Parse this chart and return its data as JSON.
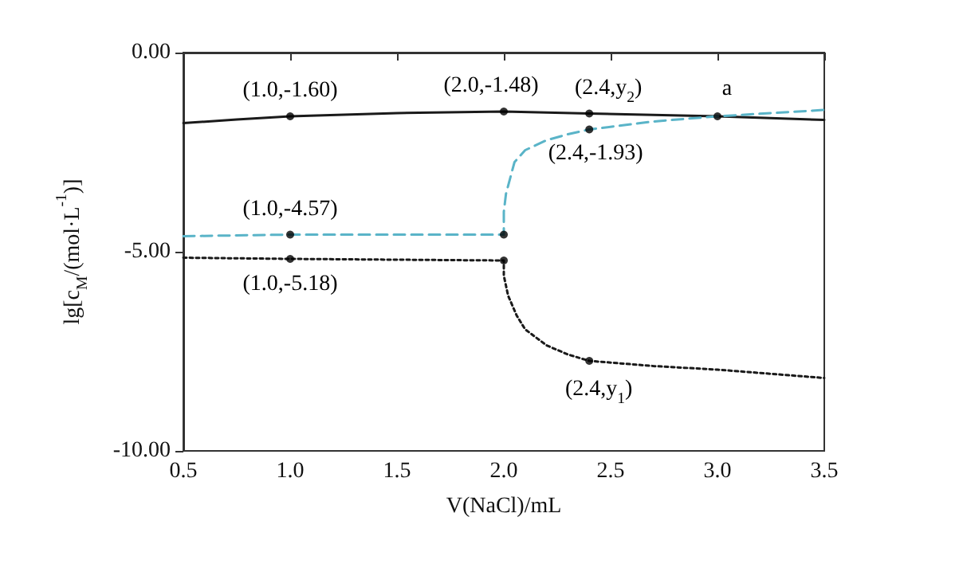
{
  "chart_data": {
    "type": "line",
    "xlabel": "V(NaCl)/mL",
    "ylabel": "lg[c$_{M}$/(mol·L$^{-1}$)]",
    "xlim": [
      0.5,
      3.5
    ],
    "ylim": [
      -10,
      0
    ],
    "xticks": [
      0.5,
      {
        "value": 1,
        "label": "1.0"
      },
      1.5,
      {
        "value": 2,
        "label": "2.0"
      },
      2.5,
      {
        "value": 3,
        "label": "3.0"
      },
      3.5
    ],
    "yticks": [
      {
        "value": -10,
        "label": "-10.00"
      },
      {
        "value": -5,
        "label": "-5.00"
      },
      {
        "value": 0,
        "label": "0.00"
      }
    ],
    "grid": false,
    "marker": "none",
    "series": [
      {
        "color": "#1a1a1a",
        "line_style": "solid",
        "x": [
          0.5,
          0.75,
          1.0,
          1.5,
          2.0,
          2.4,
          3.0,
          3.5
        ],
        "values": [
          -1.77,
          -1.68,
          -1.6,
          -1.52,
          -1.48,
          -1.53,
          -1.6,
          -1.69
        ]
      },
      {
        "color": "#5ab4c8",
        "line_style": "dashed",
        "x": [
          0.5,
          1.0,
          2.0,
          2.0,
          2.01,
          2.05,
          2.1,
          2.2,
          2.3,
          2.4,
          2.7,
          3.0,
          3.5
        ],
        "values": [
          -4.61,
          -4.57,
          -4.57,
          -4.0,
          -3.55,
          -2.75,
          -2.45,
          -2.2,
          -2.05,
          -1.93,
          -1.73,
          -1.6,
          -1.44
        ]
      },
      {
        "color": "#1a1a1a",
        "line_style": "dotted",
        "x": [
          0.5,
          1.0,
          2.0,
          2.0,
          2.02,
          2.06,
          2.1,
          2.2,
          2.3,
          2.4,
          2.7,
          3.0,
          3.5
        ],
        "values": [
          -5.15,
          -5.18,
          -5.22,
          -5.6,
          -6.1,
          -6.6,
          -6.95,
          -7.35,
          -7.58,
          -7.74,
          -7.87,
          -7.96,
          -8.17
        ]
      },
      {
        "type": "scatter",
        "color": "#000000",
        "marker": "circle",
        "x": [
          1.0,
          2.0,
          2.4,
          3.0,
          2.4,
          1.0,
          2.0,
          1.0,
          2.0,
          2.4
        ],
        "values": [
          -1.6,
          -1.48,
          -1.53,
          -1.6,
          -1.93,
          -4.57,
          -4.57,
          -5.18,
          -5.22,
          -7.74
        ]
      }
    ],
    "annotations": [
      {
        "text": "(1.0,-1.60)",
        "x": 1.0,
        "y": -1.6
      },
      {
        "text": "(2.0,-1.48)",
        "x": 2.0,
        "y": -1.48
      },
      {
        "text": "(2.4,y$_{2}$)",
        "x": 2.4,
        "y": -1.53
      },
      {
        "text": "a",
        "x": 3.0,
        "y": -1.6
      },
      {
        "text": "(2.4,-1.93)",
        "x": 2.4,
        "y": -1.93
      },
      {
        "text": "(1.0,-4.57)",
        "x": 1.0,
        "y": -4.57
      },
      {
        "text": "(1.0,-5.18)",
        "x": 1.0,
        "y": -5.18
      },
      {
        "text": "(2.4,y$_{1}$)",
        "x": 2.4,
        "y": -7.74
      }
    ]
  }
}
